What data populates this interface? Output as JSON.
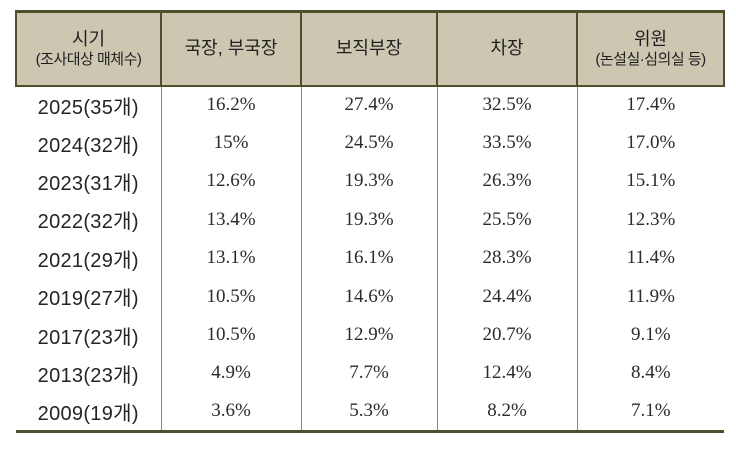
{
  "table": {
    "headers": [
      {
        "line1": "시기",
        "line2": "(조사대상 매체수)"
      },
      {
        "line1": "국장, 부국장",
        "line2": ""
      },
      {
        "line1": "보직부장",
        "line2": ""
      },
      {
        "line1": "차장",
        "line2": ""
      },
      {
        "line1": "위원",
        "line2": "(논설실·심의실 등)"
      }
    ],
    "rows": [
      {
        "period": "2025(35개)",
        "values": [
          "16.2%",
          "27.4%",
          "32.5%",
          "17.4%"
        ]
      },
      {
        "period": "2024(32개)",
        "values": [
          "15%",
          "24.5%",
          "33.5%",
          "17.0%"
        ]
      },
      {
        "period": "2023(31개)",
        "values": [
          "12.6%",
          "19.3%",
          "26.3%",
          "15.1%"
        ]
      },
      {
        "period": "2022(32개)",
        "values": [
          "13.4%",
          "19.3%",
          "25.5%",
          "12.3%"
        ]
      },
      {
        "period": "2021(29개)",
        "values": [
          "13.1%",
          "16.1%",
          "28.3%",
          "11.4%"
        ]
      },
      {
        "period": "2019(27개)",
        "values": [
          "10.5%",
          "14.6%",
          "24.4%",
          "11.9%"
        ]
      },
      {
        "period": "2017(23개)",
        "values": [
          "10.5%",
          "12.9%",
          "20.7%",
          "9.1%"
        ]
      },
      {
        "period": "2013(23개)",
        "values": [
          "4.9%",
          "7.7%",
          "12.4%",
          "8.4%"
        ]
      },
      {
        "period": "2009(19개)",
        "values": [
          "3.6%",
          "5.3%",
          "8.2%",
          "7.1%"
        ]
      }
    ]
  },
  "chart_data": {
    "type": "table",
    "columns": [
      "시기 (조사대상 매체수)",
      "국장, 부국장",
      "보직부장",
      "차장",
      "위원 (논설실·심의실 등)"
    ],
    "rows": [
      [
        "2025(35개)",
        "16.2%",
        "27.4%",
        "32.5%",
        "17.4%"
      ],
      [
        "2024(32개)",
        "15%",
        "24.5%",
        "33.5%",
        "17.0%"
      ],
      [
        "2023(31개)",
        "12.6%",
        "19.3%",
        "26.3%",
        "15.1%"
      ],
      [
        "2022(32개)",
        "13.4%",
        "19.3%",
        "25.5%",
        "12.3%"
      ],
      [
        "2021(29개)",
        "13.1%",
        "16.1%",
        "28.3%",
        "11.4%"
      ],
      [
        "2019(27개)",
        "10.5%",
        "14.6%",
        "24.4%",
        "11.9%"
      ],
      [
        "2017(23개)",
        "10.5%",
        "12.9%",
        "20.7%",
        "9.1%"
      ],
      [
        "2013(23개)",
        "4.9%",
        "7.7%",
        "12.4%",
        "8.4%"
      ],
      [
        "2009(19개)",
        "3.6%",
        "5.3%",
        "8.2%",
        "7.1%"
      ]
    ]
  },
  "colors": {
    "header_bg": "#cdc7b2",
    "border_dark": "#4f4f2b",
    "grid_light": "#8b8b6b",
    "text": "#1f1f1f"
  }
}
